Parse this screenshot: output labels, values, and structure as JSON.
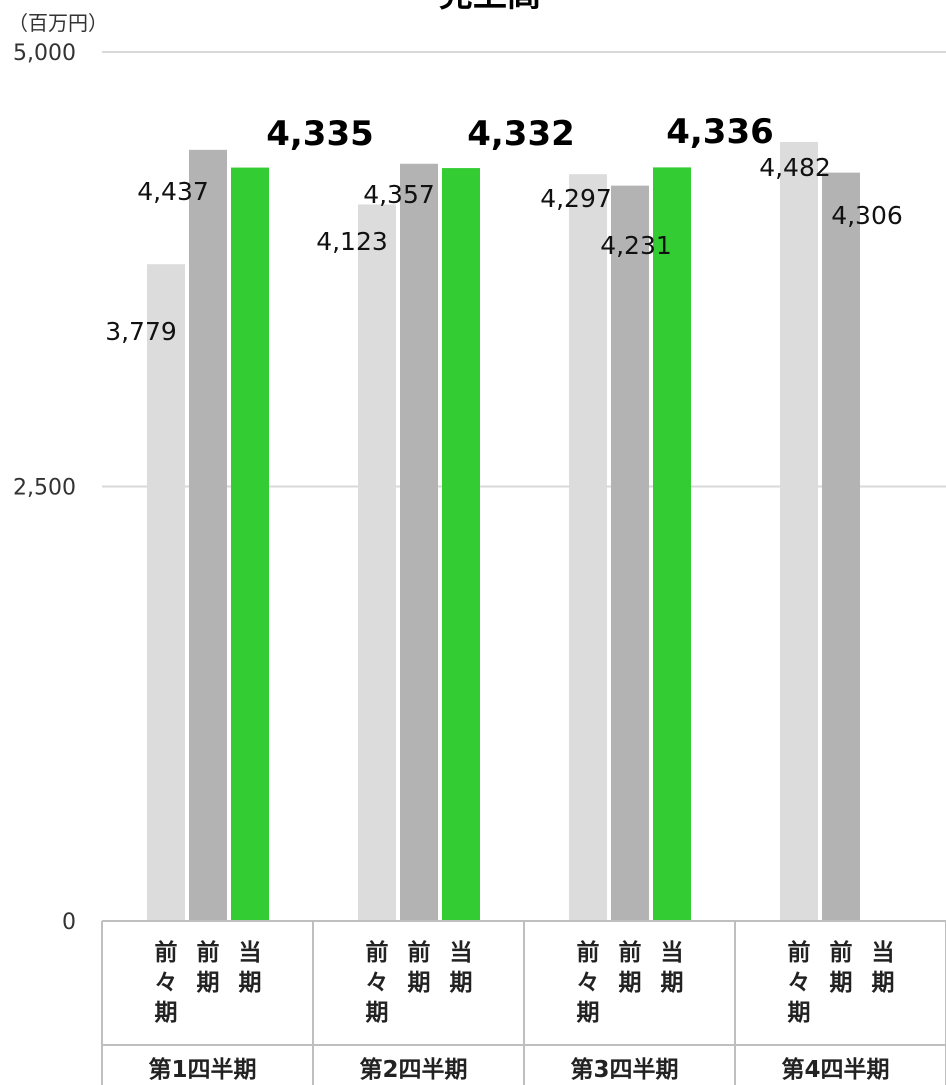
{
  "chart_data": {
    "type": "bar",
    "title": "売上高",
    "unit_label": "（百万円）",
    "ylim": [
      0,
      5000
    ],
    "y_ticks": [
      "0",
      "2,500",
      "5,000"
    ],
    "y_tick_values": [
      0,
      2500,
      5000
    ],
    "grid": true,
    "categories": [
      "第1四半期",
      "第2四半期",
      "第3四半期",
      "第4四半期"
    ],
    "series": [
      {
        "name": "前々期",
        "label_lines": [
          "前",
          "々",
          "期"
        ],
        "color": "#dcdcdc",
        "values": [
          3779,
          4123,
          4297,
          4482
        ],
        "labels": [
          "3,779",
          "4,123",
          "4,297",
          "4,482"
        ]
      },
      {
        "name": "前期",
        "label_lines": [
          "前",
          "期"
        ],
        "color": "#b3b3b3",
        "values": [
          4437,
          4357,
          4231,
          4306
        ],
        "labels": [
          "4,437",
          "4,357",
          "4,231",
          "4,306"
        ]
      },
      {
        "name": "当期",
        "label_lines": [
          "当",
          "期"
        ],
        "color": "#33cc33",
        "values": [
          4335,
          4332,
          4336,
          null
        ],
        "labels": [
          "4,335",
          "4,332",
          "4,336",
          ""
        ]
      }
    ]
  }
}
